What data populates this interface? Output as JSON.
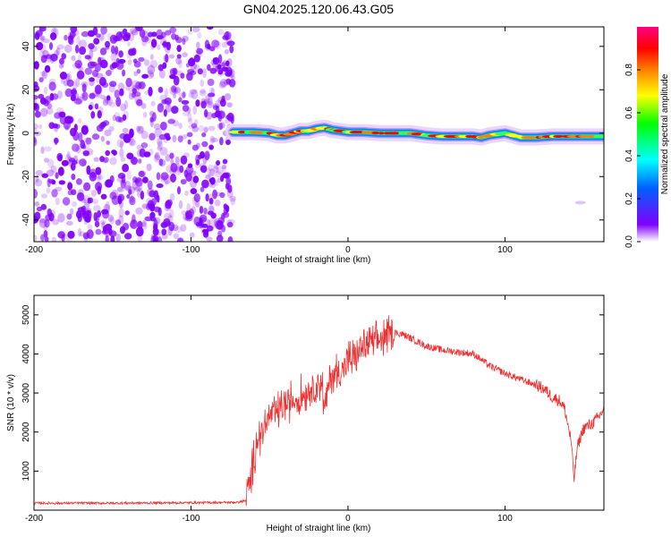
{
  "title": "GN04.2025.120.06.43.G05",
  "chart_data": [
    {
      "type": "heatmap",
      "xlabel": "Height of straight line (km)",
      "ylabel": "Frequency (Hz)",
      "xlim": [
        -200,
        163
      ],
      "ylim": [
        -50,
        49
      ],
      "xticks": [
        -200,
        -100,
        0,
        100
      ],
      "yticks": [
        -40,
        -20,
        0,
        20,
        40
      ],
      "noise_region_x": [
        -200,
        -73
      ],
      "noise_color": "#8000ff",
      "signal_track": {
        "x": [
          -73,
          -60,
          -50,
          -45,
          -40,
          -35,
          -30,
          -25,
          -20,
          -15,
          -10,
          -5,
          0,
          10,
          20,
          30,
          40,
          50,
          60,
          70,
          80,
          85,
          90,
          100,
          110,
          120,
          130,
          140,
          150,
          163
        ],
        "y": [
          0.5,
          0.5,
          0,
          -1,
          -1,
          0,
          1,
          1,
          2,
          2.5,
          1.5,
          1,
          0.5,
          0.5,
          0,
          0,
          0,
          -1,
          -1.5,
          -1.5,
          -1.5,
          -2,
          -1,
          0,
          -2,
          -2,
          -1.5,
          -1.5,
          -1.5,
          -1.5
        ]
      },
      "isolated_blob": {
        "x": 148,
        "y": -32
      },
      "colorbar": {
        "label": "Normalized spectral amplitude",
        "ticks": [
          0.0,
          0.2,
          0.4,
          0.6,
          0.8
        ],
        "range": [
          0,
          1
        ],
        "colors": [
          "#ffffff",
          "#8000ff",
          "#0080ff",
          "#00ffff",
          "#00ff00",
          "#ffff00",
          "#ff8000",
          "#ff0000",
          "#ff0080"
        ]
      }
    },
    {
      "type": "line",
      "xlabel": "Height of straight line (km)",
      "ylabel": "SNR (10 * v/v)",
      "xlim": [
        -200,
        163
      ],
      "ylim": [
        0,
        5500
      ],
      "xticks": [
        -200,
        -100,
        0,
        100
      ],
      "yticks": [
        1000,
        2000,
        3000,
        4000,
        5000
      ],
      "color": "#f03030",
      "series": [
        {
          "x": [
            -200,
            -150,
            -100,
            -70,
            -65,
            -62,
            -58,
            -55,
            -50,
            -45,
            -40,
            -35,
            -30,
            -25,
            -20,
            -17,
            -15,
            -12,
            -10,
            -5,
            0,
            5,
            10,
            15,
            20,
            25,
            30,
            35,
            40,
            50,
            60,
            70,
            80,
            90,
            100,
            110,
            120,
            125,
            130,
            135,
            138,
            140,
            142,
            144,
            146,
            150,
            155,
            160,
            163
          ],
          "y": [
            180,
            180,
            190,
            200,
            250,
            800,
            1800,
            2000,
            2400,
            2500,
            2700,
            2800,
            2900,
            3100,
            3200,
            3400,
            2500,
            3300,
            3500,
            3500,
            3800,
            3950,
            4200,
            4300,
            4350,
            4450,
            4550,
            4500,
            4400,
            4200,
            4100,
            4050,
            4000,
            3700,
            3500,
            3350,
            3200,
            3100,
            2900,
            2800,
            2600,
            2200,
            1800,
            800,
            1600,
            2100,
            2200,
            2400,
            2600
          ]
        }
      ]
    }
  ]
}
